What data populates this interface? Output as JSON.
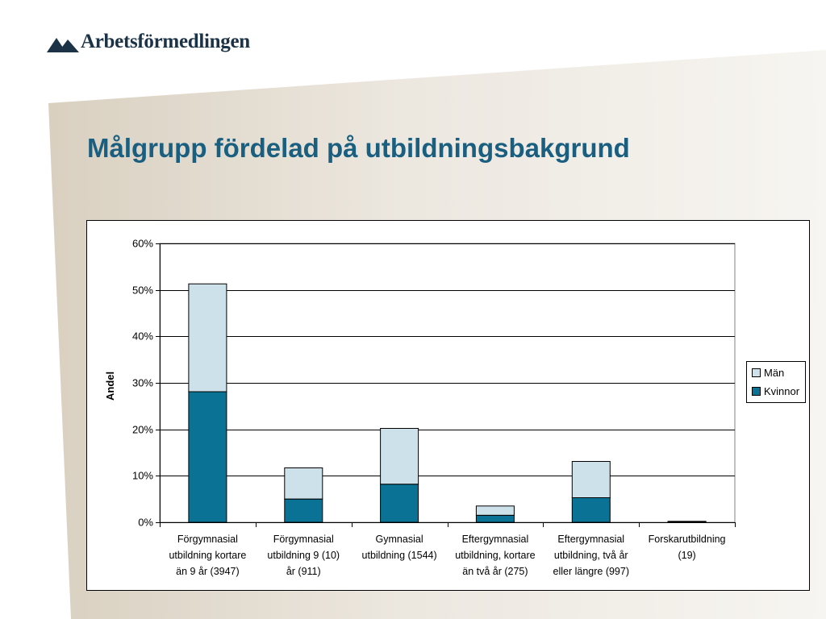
{
  "header": {
    "logo_text": "Arbetsförmedlingen"
  },
  "slide": {
    "title": "Målgrupp fördelad på utbildningsbakgrund"
  },
  "colors": {
    "kvinnor": "#0a7294",
    "man": "#cde1ea",
    "title": "#1a5f80",
    "logo": "#1c3347"
  },
  "chart_data": {
    "type": "bar",
    "stacked": true,
    "title": "",
    "xlabel": "",
    "ylabel": "Andel",
    "ylim": [
      0,
      0.6
    ],
    "yticks": [
      0,
      0.1,
      0.2,
      0.3,
      0.4,
      0.5,
      0.6
    ],
    "ytick_labels": [
      "0%",
      "10%",
      "20%",
      "30%",
      "40%",
      "50%",
      "60%"
    ],
    "grid": true,
    "legend_position": "right",
    "categories": [
      [
        "Förgymnasial",
        "utbildning kortare",
        "än 9 år (3947)"
      ],
      [
        "Förgymnasial",
        "utbildning 9 (10)",
        "år (911)"
      ],
      [
        "Gymnasial",
        "utbildning (1544)"
      ],
      [
        "Eftergymnasial",
        "utbildning, kortare",
        "än två år (275)"
      ],
      [
        "Eftergymnasial",
        "utbildning, två år",
        "eller längre (997)"
      ],
      [
        "Forskarutbildning",
        "(19)"
      ]
    ],
    "series": [
      {
        "name": "Kvinnor",
        "values": [
          0.281,
          0.05,
          0.082,
          0.015,
          0.053,
          0.001
        ]
      },
      {
        "name": "Män",
        "values": [
          0.232,
          0.067,
          0.12,
          0.02,
          0.078,
          0.001
        ]
      }
    ],
    "legend_order": [
      "Män",
      "Kvinnor"
    ]
  }
}
